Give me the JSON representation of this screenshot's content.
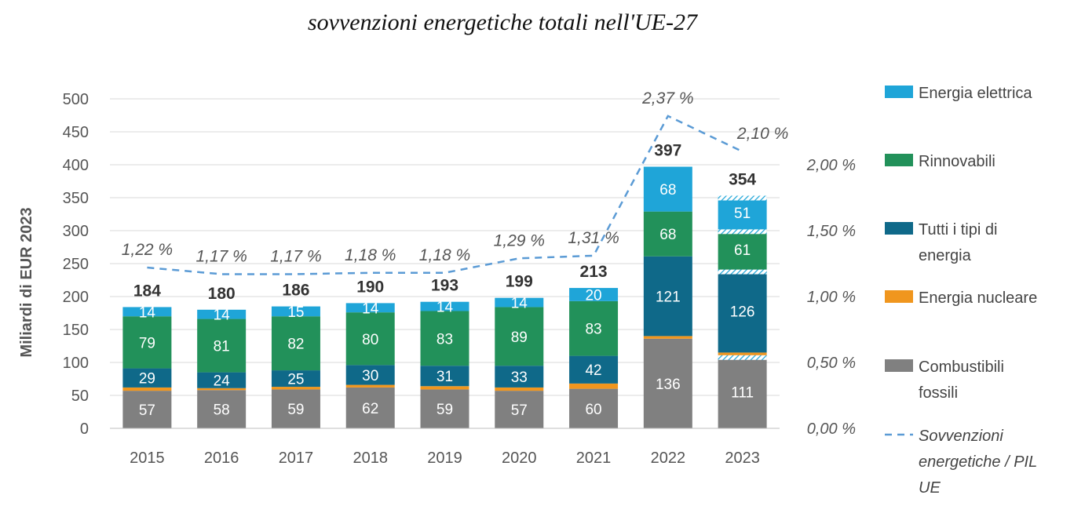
{
  "title": "sovvenzioni energetiche totali nell'UE-27",
  "chart_data": {
    "type": "bar",
    "stacked": true,
    "title": "sovvenzioni energetiche totali nell'UE-27",
    "ylabel": "Miliardi di EUR 2023",
    "ylim": [
      0,
      500
    ],
    "yticks": [
      "0",
      "50",
      "100",
      "150",
      "200",
      "250",
      "300",
      "350",
      "400",
      "450",
      "500"
    ],
    "y2ticks": [
      "0,00 %",
      "0,50 %",
      "1,00 %",
      "1,50 %",
      "2,00 %"
    ],
    "y2lim": [
      0,
      2.5
    ],
    "grid": true,
    "legend_position": "right",
    "categories": [
      "2015",
      "2016",
      "2017",
      "2018",
      "2019",
      "2020",
      "2021",
      "2022",
      "2023"
    ],
    "series": [
      {
        "name": "Combustibili fossili",
        "color": "#808080",
        "values": [
          57,
          58,
          59,
          62,
          59,
          57,
          60,
          136,
          111
        ]
      },
      {
        "name": "Energia nucleare",
        "color": "#f0961e",
        "values": [
          5,
          3,
          4,
          4,
          5,
          5,
          8,
          4,
          4
        ]
      },
      {
        "name": "Tutti i tipi di energia",
        "color": "#0f6989",
        "values": [
          29,
          24,
          25,
          30,
          31,
          33,
          42,
          121,
          126
        ]
      },
      {
        "name": "Rinnovabili",
        "color": "#22915a",
        "values": [
          79,
          81,
          82,
          80,
          83,
          89,
          83,
          68,
          61
        ]
      },
      {
        "name": "Energia elettrica",
        "color": "#1fa5d8",
        "values": [
          14,
          14,
          15,
          14,
          14,
          14,
          20,
          68,
          51
        ]
      }
    ],
    "totals": [
      "184",
      "180",
      "186",
      "190",
      "193",
      "199",
      "213",
      "397",
      "354"
    ],
    "line_series": {
      "name": "Sovvenzioni energetiche / PIL UE",
      "color": "#5b9bd5",
      "values": [
        1.22,
        1.17,
        1.17,
        1.18,
        1.18,
        1.29,
        1.31,
        2.37,
        2.1
      ],
      "labels": [
        "1,22 %",
        "1,17 %",
        "1,17 %",
        "1,18 %",
        "1,18 %",
        "1,29 %",
        "1,31 %",
        "2,37 %",
        "2,10 %"
      ]
    }
  }
}
